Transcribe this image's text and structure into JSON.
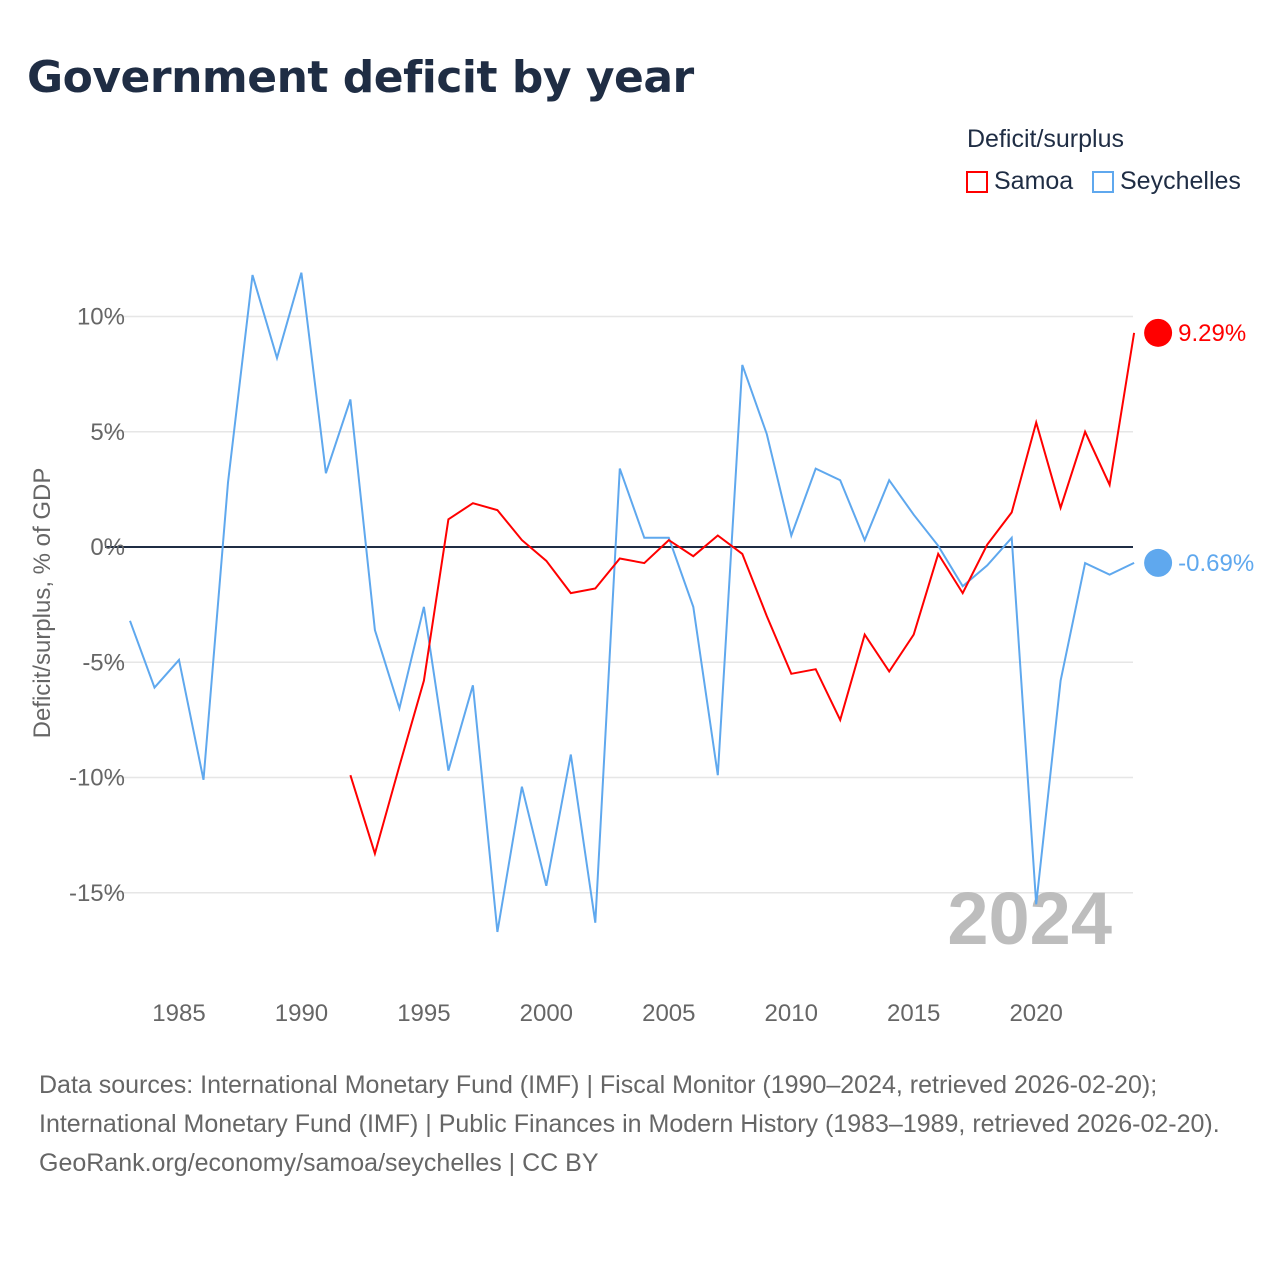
{
  "title": "Government deficit by year",
  "legend": {
    "title": "Deficit/surplus",
    "items": [
      "Samoa",
      "Seychelles"
    ]
  },
  "footer": {
    "sources": "Data sources: International Monetary Fund (IMF) | Fiscal Monitor (1990–2024, retrieved 2026-02-20); International Monetary Fund (IMF) | Public Finances in Modern History (1983–1989, retrieved 2026-02-20).",
    "credit": "GeoRank.org/economy/samoa/seychelles | CC BY"
  },
  "chart_data": {
    "type": "line",
    "title": "Government deficit by year",
    "xlabel": "",
    "ylabel": "Deficit/surplus, % of GDP",
    "xlim": [
      1983,
      2024
    ],
    "ylim": [
      -18,
      13
    ],
    "xticks": [
      1985,
      1990,
      1995,
      2000,
      2005,
      2010,
      2015,
      2020
    ],
    "yticks": [
      10,
      5,
      0,
      -5,
      -10,
      -15
    ],
    "ytick_labels": [
      "10%",
      "5%",
      "0%",
      "-5%",
      "-10%",
      "-15%"
    ],
    "year_label": "2024",
    "series": [
      {
        "name": "Samoa",
        "color": "#ff0000",
        "end_label": "9.29%",
        "start": 1992,
        "values": [
          -9.9,
          -13.3,
          -9.5,
          -5.8,
          1.2,
          1.9,
          1.6,
          0.3,
          -0.6,
          -2.0,
          -1.8,
          -0.5,
          -0.7,
          0.3,
          -0.4,
          0.5,
          -0.3,
          -3.0,
          -5.5,
          -5.3,
          -7.5,
          -3.8,
          -5.4,
          -3.8,
          -0.3,
          -2.0,
          0.1,
          1.5,
          5.4,
          1.7,
          5.0,
          2.7,
          9.29
        ]
      },
      {
        "name": "Seychelles",
        "color": "#5fa8ee",
        "end_label": "-0.69%",
        "start": 1983,
        "values": [
          -3.2,
          -6.1,
          -4.9,
          -10.1,
          2.8,
          11.8,
          8.2,
          11.9,
          3.2,
          6.4,
          -3.6,
          -7.0,
          -2.6,
          -9.7,
          -6.0,
          -16.7,
          -10.4,
          -14.7,
          -9.0,
          -16.3,
          3.4,
          0.4,
          0.4,
          -2.6,
          -9.9,
          7.9,
          4.9,
          0.5,
          3.4,
          2.9,
          0.3,
          2.9,
          1.4,
          0.05,
          -1.7,
          -0.8,
          0.4,
          -15.5,
          -5.8,
          -0.7,
          -1.2,
          -0.69
        ]
      }
    ]
  }
}
